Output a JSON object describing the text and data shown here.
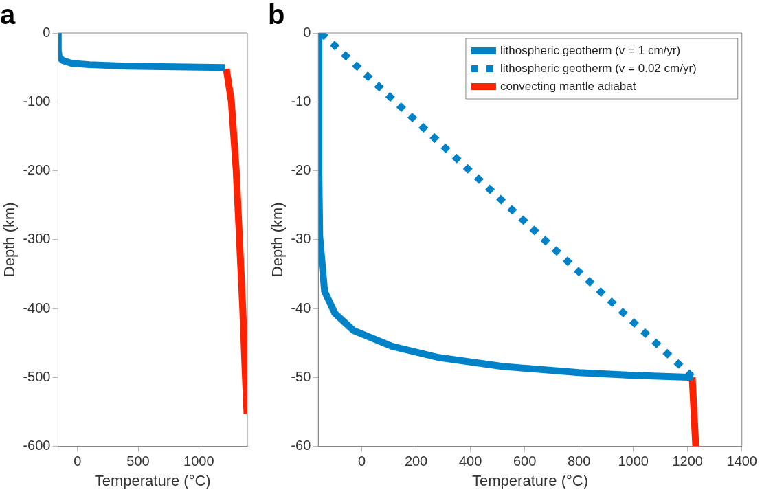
{
  "chart_data": [
    {
      "type": "line",
      "title": "a",
      "xlabel": "Temperature (°C)",
      "ylabel": "Depth (km)",
      "xlim": [
        -160,
        1400
      ],
      "xticks": [
        0,
        500,
        1000
      ],
      "ylim": [
        -600,
        0
      ],
      "yticks": [
        -600,
        -500,
        -400,
        -300,
        -200,
        -100,
        0
      ],
      "grid": false,
      "legend": false,
      "series": [
        {
          "color": "#0082c8",
          "line_style": "solid",
          "x": [
            -158,
            -158,
            -150,
            -120,
            -50,
            100,
            400,
            800,
            1213
          ],
          "values": [
            0,
            -25,
            -35,
            -40,
            -44,
            -46,
            -48,
            -49,
            -50
          ]
        },
        {
          "color": "#ff2200",
          "line_style": "solid",
          "x": [
            1227,
            1268,
            1308,
            1335,
            1362,
            1384,
            1397
          ],
          "values": [
            -52,
            -99,
            -199,
            -299,
            -400,
            -500,
            -553
          ]
        }
      ]
    },
    {
      "type": "line",
      "title": "b",
      "xlabel": "Temperature (°C)",
      "ylabel": "Depth (km)",
      "xlim": [
        -160,
        1400
      ],
      "xticks": [
        0,
        200,
        400,
        600,
        800,
        1000,
        1200,
        1400
      ],
      "ylim": [
        -60,
        0
      ],
      "yticks": [
        -60,
        -50,
        -40,
        -30,
        -20,
        -10,
        0
      ],
      "grid": false,
      "legend": "top right",
      "series": [
        {
          "name": "lithospheric geotherm (v = 1 cm/yr)",
          "color": "#0082c8",
          "line_style": "solid",
          "x": [
            -158,
            -158,
            -155,
            -137,
            -99,
            -30,
            112,
            282,
            518,
            800,
            1000,
            1220
          ],
          "values": [
            0,
            -20,
            -29.5,
            -37.5,
            -40.7,
            -43.2,
            -45.5,
            -47.1,
            -48.4,
            -49.3,
            -49.7,
            -50
          ]
        },
        {
          "name": "lithospheric geotherm (v = 0.02 cm/yr)",
          "color": "#0082c8",
          "line_style": "dotted",
          "x": [
            -150,
            1220
          ],
          "values": [
            0,
            -50
          ]
        },
        {
          "name": "convecting mantle adiabat",
          "color": "#ff2200",
          "line_style": "solid",
          "x": [
            1217,
            1230
          ],
          "values": [
            -50,
            -60
          ]
        }
      ]
    }
  ]
}
